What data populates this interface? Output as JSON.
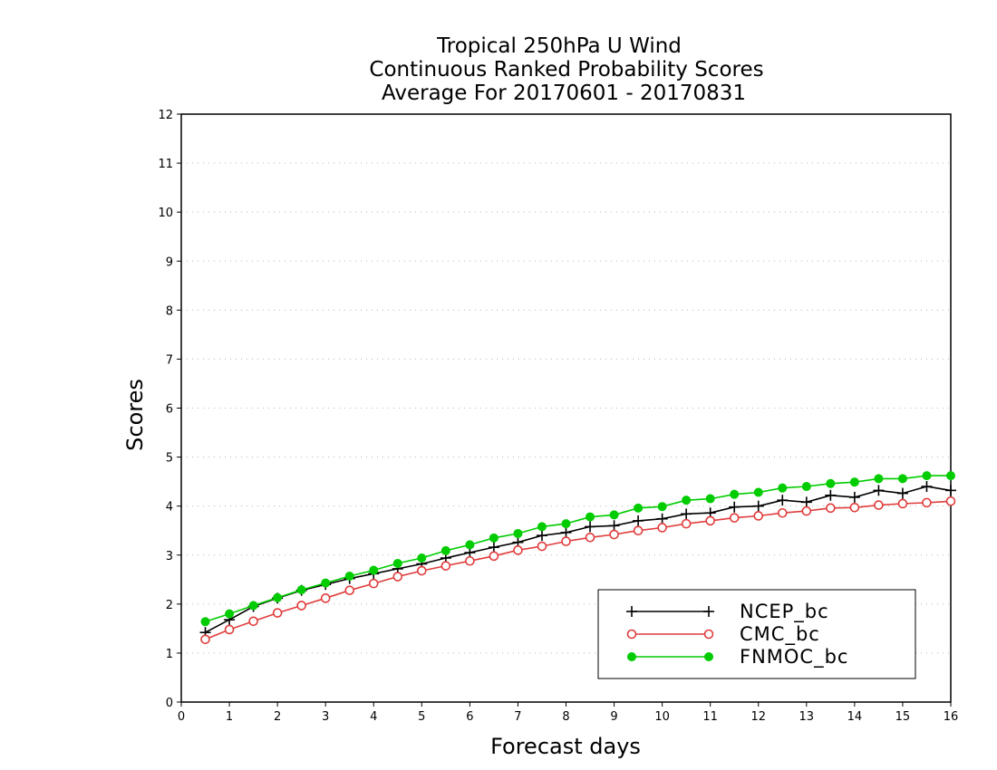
{
  "chart_data": {
    "type": "line",
    "title": [
      "Tropical 250hPa U Wind",
      "Continuous Ranked Probability Scores",
      "Average For 20170601 - 20170831"
    ],
    "xlabel": "Forecast days",
    "ylabel": "Scores",
    "xlim": [
      0,
      16
    ],
    "ylim": [
      0,
      12
    ],
    "xticks": [
      "0",
      "1",
      "2",
      "3",
      "4",
      "5",
      "6",
      "7",
      "8",
      "9",
      "10",
      "11",
      "12",
      "13",
      "14",
      "15",
      "16"
    ],
    "yticks": [
      "0",
      "1",
      "2",
      "3",
      "4",
      "5",
      "6",
      "7",
      "8",
      "9",
      "10",
      "11",
      "12"
    ],
    "grid": "horizontal dotted",
    "legend_position": "bottom-right",
    "x": [
      0.5,
      1,
      1.5,
      2,
      2.5,
      3,
      3.5,
      4,
      4.5,
      5,
      5.5,
      6,
      6.5,
      7,
      7.5,
      8,
      8.5,
      9,
      9.5,
      10,
      10.5,
      11,
      11.5,
      12,
      12.5,
      13,
      13.5,
      14,
      14.5,
      15,
      15.5,
      16
    ],
    "series": [
      {
        "name": "NCEP_bc",
        "color": "#000000",
        "marker": "plus",
        "values": [
          1.42,
          1.68,
          1.95,
          2.12,
          2.28,
          2.4,
          2.52,
          2.62,
          2.72,
          2.82,
          2.94,
          3.05,
          3.16,
          3.26,
          3.4,
          3.46,
          3.58,
          3.6,
          3.7,
          3.74,
          3.84,
          3.86,
          3.98,
          4.0,
          4.12,
          4.08,
          4.22,
          4.18,
          4.32,
          4.26,
          4.4,
          4.32
        ]
      },
      {
        "name": "CMC_bc",
        "color": "#e03c3c",
        "marker": "open-circle",
        "values": [
          1.28,
          1.48,
          1.65,
          1.82,
          1.97,
          2.12,
          2.28,
          2.42,
          2.56,
          2.68,
          2.78,
          2.88,
          2.98,
          3.1,
          3.18,
          3.28,
          3.36,
          3.42,
          3.5,
          3.56,
          3.64,
          3.7,
          3.76,
          3.8,
          3.86,
          3.9,
          3.96,
          3.97,
          4.02,
          4.05,
          4.07,
          4.1
        ]
      },
      {
        "name": "FNMOC_bc",
        "color": "#00cc00",
        "marker": "filled-circle",
        "values": [
          1.64,
          1.8,
          1.97,
          2.13,
          2.29,
          2.43,
          2.57,
          2.69,
          2.83,
          2.94,
          3.09,
          3.21,
          3.35,
          3.44,
          3.58,
          3.64,
          3.78,
          3.82,
          3.96,
          3.99,
          4.12,
          4.15,
          4.24,
          4.28,
          4.37,
          4.4,
          4.46,
          4.49,
          4.56,
          4.56,
          4.62,
          4.62
        ]
      }
    ]
  }
}
